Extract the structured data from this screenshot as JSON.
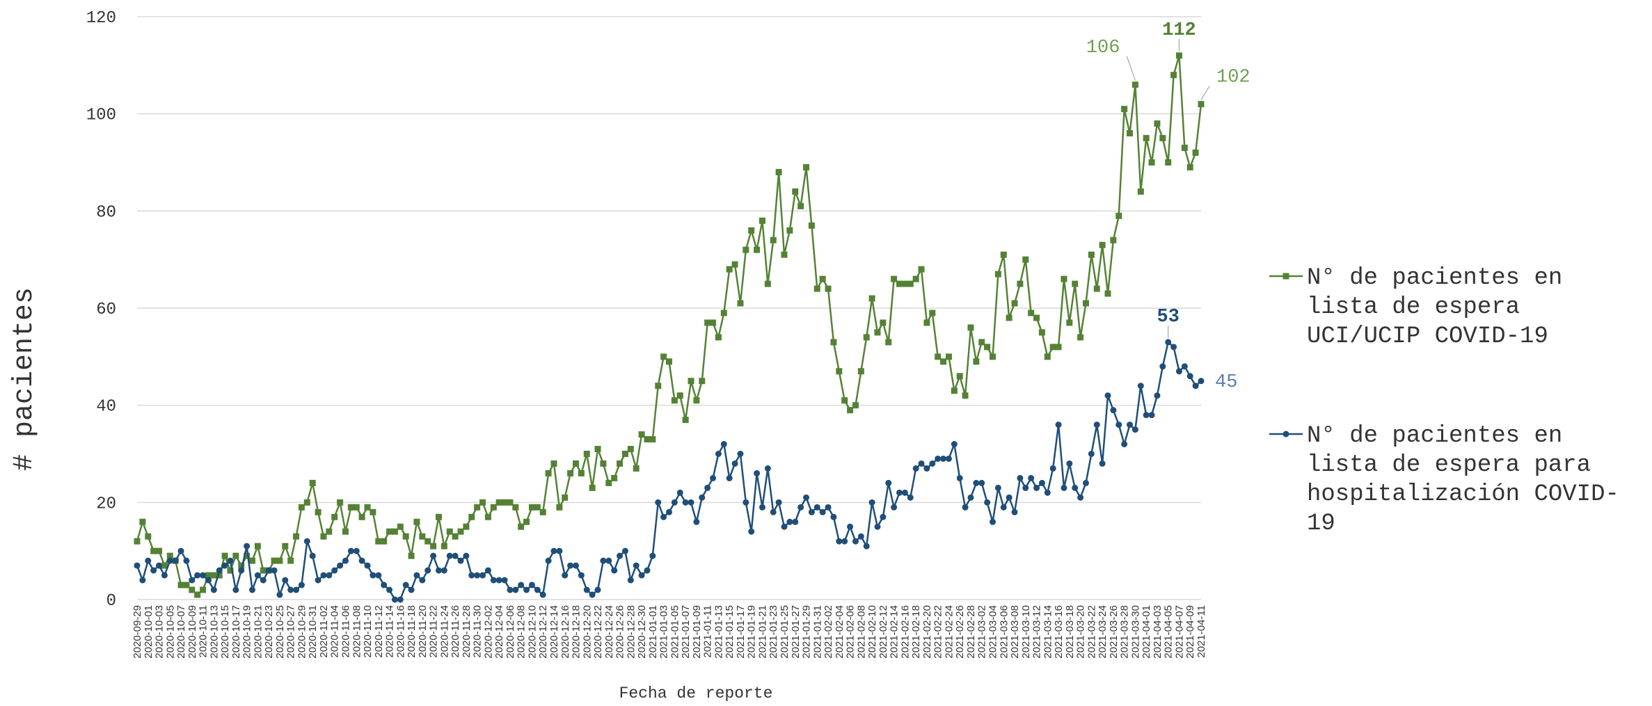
{
  "chart_data": {
    "type": "line",
    "y_label": "# pacientes",
    "x_label": "Fecha de reporte",
    "ylim": [
      0,
      120
    ],
    "yticks": [
      0,
      20,
      40,
      60,
      80,
      100,
      120
    ],
    "grid": true,
    "legend": "right",
    "categories": [
      "2020-09-29",
      null,
      "2020-10-01",
      null,
      "2020-10-03",
      null,
      "2020-10-05",
      null,
      "2020-10-07",
      null,
      "2020-10-09",
      null,
      "2020-10-11",
      null,
      "2020-10-13",
      null,
      "2020-10-15",
      null,
      "2020-10-17",
      null,
      "2020-10-19",
      null,
      "2020-10-21",
      null,
      "2020-10-23",
      null,
      "2020-10-25",
      null,
      "2020-10-27",
      null,
      "2020-10-29",
      null,
      "2020-10-31",
      null,
      "2020-11-02",
      null,
      "2020-11-04",
      null,
      "2020-11-06",
      null,
      "2020-11-08",
      null,
      "2020-11-10",
      null,
      "2020-11-12",
      null,
      "2020-11-14",
      null,
      "2020-11-16",
      null,
      "2020-11-18",
      null,
      "2020-11-20",
      null,
      "2020-11-22",
      null,
      "2020-11-24",
      null,
      "2020-11-26",
      null,
      "2020-11-28",
      null,
      "2020-11-30",
      null,
      "2020-12-02",
      null,
      "2020-12-04",
      null,
      "2020-12-06",
      null,
      "2020-12-08",
      null,
      "2020-12-10",
      null,
      "2020-12-12",
      null,
      "2020-12-14",
      null,
      "2020-12-16",
      null,
      "2020-12-18",
      null,
      "2020-12-20",
      null,
      "2020-12-22",
      null,
      "2020-12-24",
      null,
      "2020-12-26",
      null,
      "2020-12-28",
      null,
      "2020-12-30",
      null,
      "2021-01-01",
      null,
      "2021-01-03",
      null,
      "2021-01-05",
      null,
      "2021-01-07",
      null,
      "2021-01-09",
      null,
      "2021-01-11",
      null,
      "2021-01-13",
      null,
      "2021-01-15",
      null,
      "2021-01-17",
      null,
      "2021-01-19",
      null,
      "2021-01-21",
      null,
      "2021-01-23",
      null,
      "2021-01-25",
      null,
      "2021-01-27",
      null,
      "2021-01-29",
      null,
      "2021-01-31",
      null,
      "2021-02-02",
      null,
      "2021-02-04",
      null,
      "2021-02-06",
      null,
      "2021-02-08",
      null,
      "2021-02-10",
      null,
      "2021-02-12",
      null,
      "2021-02-14",
      null,
      "2021-02-16",
      null,
      "2021-02-18",
      null,
      "2021-02-20",
      null,
      "2021-02-22",
      null,
      "2021-02-24",
      null,
      "2021-02-26",
      null,
      "2021-02-28",
      null,
      "2021-03-02",
      null,
      "2021-03-04",
      null,
      "2021-03-06",
      null,
      "2021-03-08",
      null,
      "2021-03-10",
      null,
      "2021-03-12",
      null,
      "2021-03-14",
      null,
      "2021-03-16",
      null,
      "2021-03-18",
      null,
      "2021-03-20",
      null,
      "2021-03-22",
      null,
      "2021-03-24",
      null,
      "2021-03-26",
      null,
      "2021-03-28",
      null,
      "2021-03-30",
      null,
      "2021-04-01",
      null,
      "2021-04-03",
      null,
      "2021-04-05",
      null,
      "2021-04-07",
      null,
      "2021-04-09",
      null,
      "2021-04-11"
    ],
    "series": [
      {
        "name": "N° de pacientes en lista de espera UCI/UCIP COVID-19",
        "color": "#548235",
        "marker": "square",
        "values": [
          12,
          16,
          13,
          10,
          10,
          7,
          9,
          8,
          3,
          3,
          2,
          1,
          2,
          5,
          5,
          5,
          9,
          6,
          9,
          7,
          9,
          8,
          11,
          6,
          6,
          8,
          8,
          11,
          8,
          13,
          19,
          20,
          24,
          18,
          13,
          14,
          17,
          20,
          14,
          19,
          19,
          17,
          19,
          18,
          12,
          12,
          14,
          14,
          15,
          13,
          9,
          16,
          13,
          12,
          11,
          17,
          11,
          14,
          13,
          14,
          15,
          17,
          19,
          20,
          17,
          19,
          20,
          20,
          20,
          19,
          15,
          16,
          19,
          19,
          18,
          26,
          28,
          19,
          21,
          26,
          28,
          26,
          30,
          23,
          31,
          28,
          24,
          25,
          28,
          30,
          31,
          27,
          34,
          33,
          33,
          44,
          50,
          49,
          41,
          42,
          37,
          45,
          41,
          45,
          57,
          57,
          54,
          59,
          68,
          69,
          61,
          72,
          76,
          72,
          78,
          65,
          74,
          88,
          71,
          76,
          84,
          81,
          89,
          77,
          64,
          66,
          64,
          53,
          47,
          41,
          39,
          40,
          47,
          54,
          62,
          55,
          57,
          53,
          66,
          65,
          65,
          65,
          66,
          68,
          57,
          59,
          50,
          49,
          50,
          43,
          46,
          42,
          56,
          49,
          53,
          52,
          50,
          67,
          71,
          58,
          61,
          65,
          70,
          59,
          58,
          55,
          50,
          52,
          52,
          66,
          57,
          65,
          54,
          61,
          71,
          64,
          73,
          63,
          74,
          79,
          101,
          96,
          106,
          84,
          95,
          90,
          98,
          95,
          90,
          108,
          112,
          93,
          89,
          92,
          102
        ],
        "data_labels": [
          {
            "index": 182,
            "position": "above-left",
            "color": "#70a050",
            "bold": false
          },
          {
            "index": 190,
            "position": "above",
            "color": "#548235",
            "bold": true
          },
          {
            "index": 194,
            "position": "above-right",
            "color": "#70a050",
            "bold": false
          }
        ]
      },
      {
        "name": "N° de pacientes en lista de espera para hospitalización COVID-19",
        "color": "#1f4e79",
        "marker": "circle",
        "values": [
          7,
          4,
          8,
          6,
          7,
          5,
          8,
          8,
          10,
          8,
          4,
          5,
          5,
          4,
          2,
          6,
          7,
          8,
          2,
          6,
          11,
          2,
          5,
          4,
          6,
          6,
          1,
          4,
          2,
          2,
          3,
          12,
          9,
          4,
          5,
          5,
          6,
          7,
          8,
          10,
          10,
          8,
          7,
          5,
          5,
          3,
          2,
          0,
          0,
          3,
          2,
          5,
          4,
          6,
          9,
          6,
          6,
          9,
          9,
          8,
          9,
          5,
          5,
          5,
          6,
          4,
          4,
          4,
          2,
          2,
          3,
          2,
          3,
          2,
          1,
          8,
          10,
          10,
          5,
          7,
          7,
          5,
          2,
          1,
          2,
          8,
          8,
          6,
          9,
          10,
          4,
          7,
          5,
          6,
          9,
          20,
          17,
          18,
          20,
          22,
          20,
          20,
          16,
          21,
          23,
          25,
          30,
          32,
          25,
          28,
          30,
          20,
          14,
          26,
          19,
          27,
          18,
          20,
          15,
          16,
          16,
          19,
          21,
          18,
          19,
          18,
          19,
          17,
          12,
          12,
          15,
          12,
          13,
          11,
          20,
          15,
          17,
          24,
          19,
          22,
          22,
          21,
          27,
          28,
          27,
          28,
          29,
          29,
          29,
          32,
          25,
          19,
          21,
          24,
          24,
          20,
          16,
          23,
          19,
          21,
          18,
          25,
          23,
          25,
          23,
          24,
          22,
          27,
          36,
          23,
          28,
          23,
          21,
          24,
          30,
          36,
          28,
          42,
          39,
          36,
          32,
          36,
          35,
          44,
          38,
          38,
          42,
          48,
          53,
          52,
          47,
          48,
          46,
          44,
          45
        ],
        "data_labels": [
          {
            "index": 188,
            "position": "above",
            "color": "#1f4e79",
            "bold": true
          },
          {
            "index": 194,
            "position": "right",
            "color": "#5b7fa5",
            "bold": false
          }
        ]
      }
    ]
  }
}
